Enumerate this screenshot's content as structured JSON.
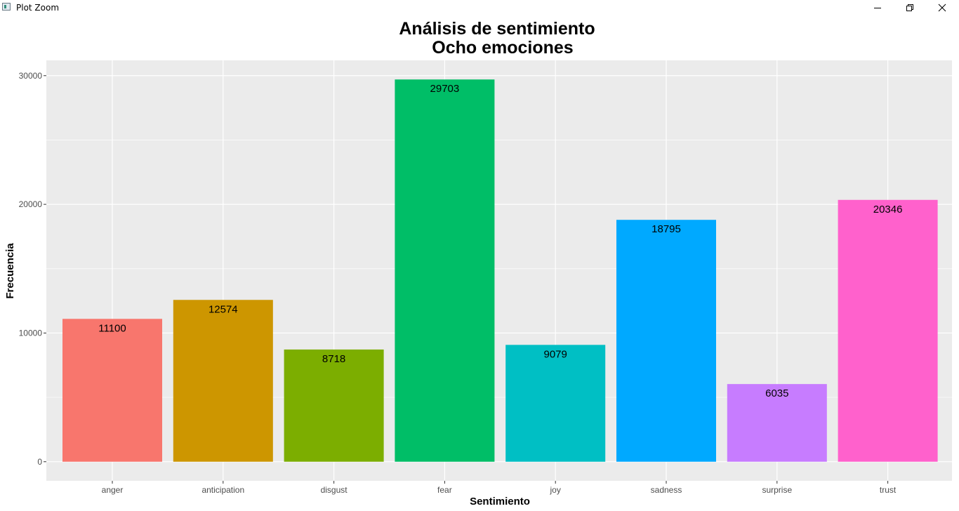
{
  "window": {
    "title": "Plot Zoom",
    "controls": {
      "minimize": "minimize-icon",
      "restore": "restore-icon",
      "close": "close-icon"
    }
  },
  "chart_data": {
    "type": "bar",
    "title": "Análisis de sentimiento",
    "subtitle": "Ocho emociones",
    "xlabel": "Sentimiento",
    "ylabel": "Frecuencia",
    "categories": [
      "anger",
      "anticipation",
      "disgust",
      "fear",
      "joy",
      "sadness",
      "surprise",
      "trust"
    ],
    "values": [
      11100,
      12574,
      8718,
      29703,
      9079,
      18795,
      6035,
      20346
    ],
    "data_labels": [
      "11100",
      "12574",
      "8718",
      "29703",
      "9079",
      "18795",
      "6035",
      "20346"
    ],
    "colors": [
      "#F8766D",
      "#CD9600",
      "#7CAE00",
      "#00BE67",
      "#00BFC4",
      "#00A9FF",
      "#C77CFF",
      "#FF61CC"
    ],
    "y_ticks": [
      0,
      10000,
      20000,
      30000
    ],
    "y_tick_labels": [
      "0",
      "10000",
      "20000",
      "30000"
    ],
    "ylim": [
      -1485,
      31188
    ],
    "grid": true,
    "panel_background": "#EBEBEB",
    "legend": "none"
  }
}
